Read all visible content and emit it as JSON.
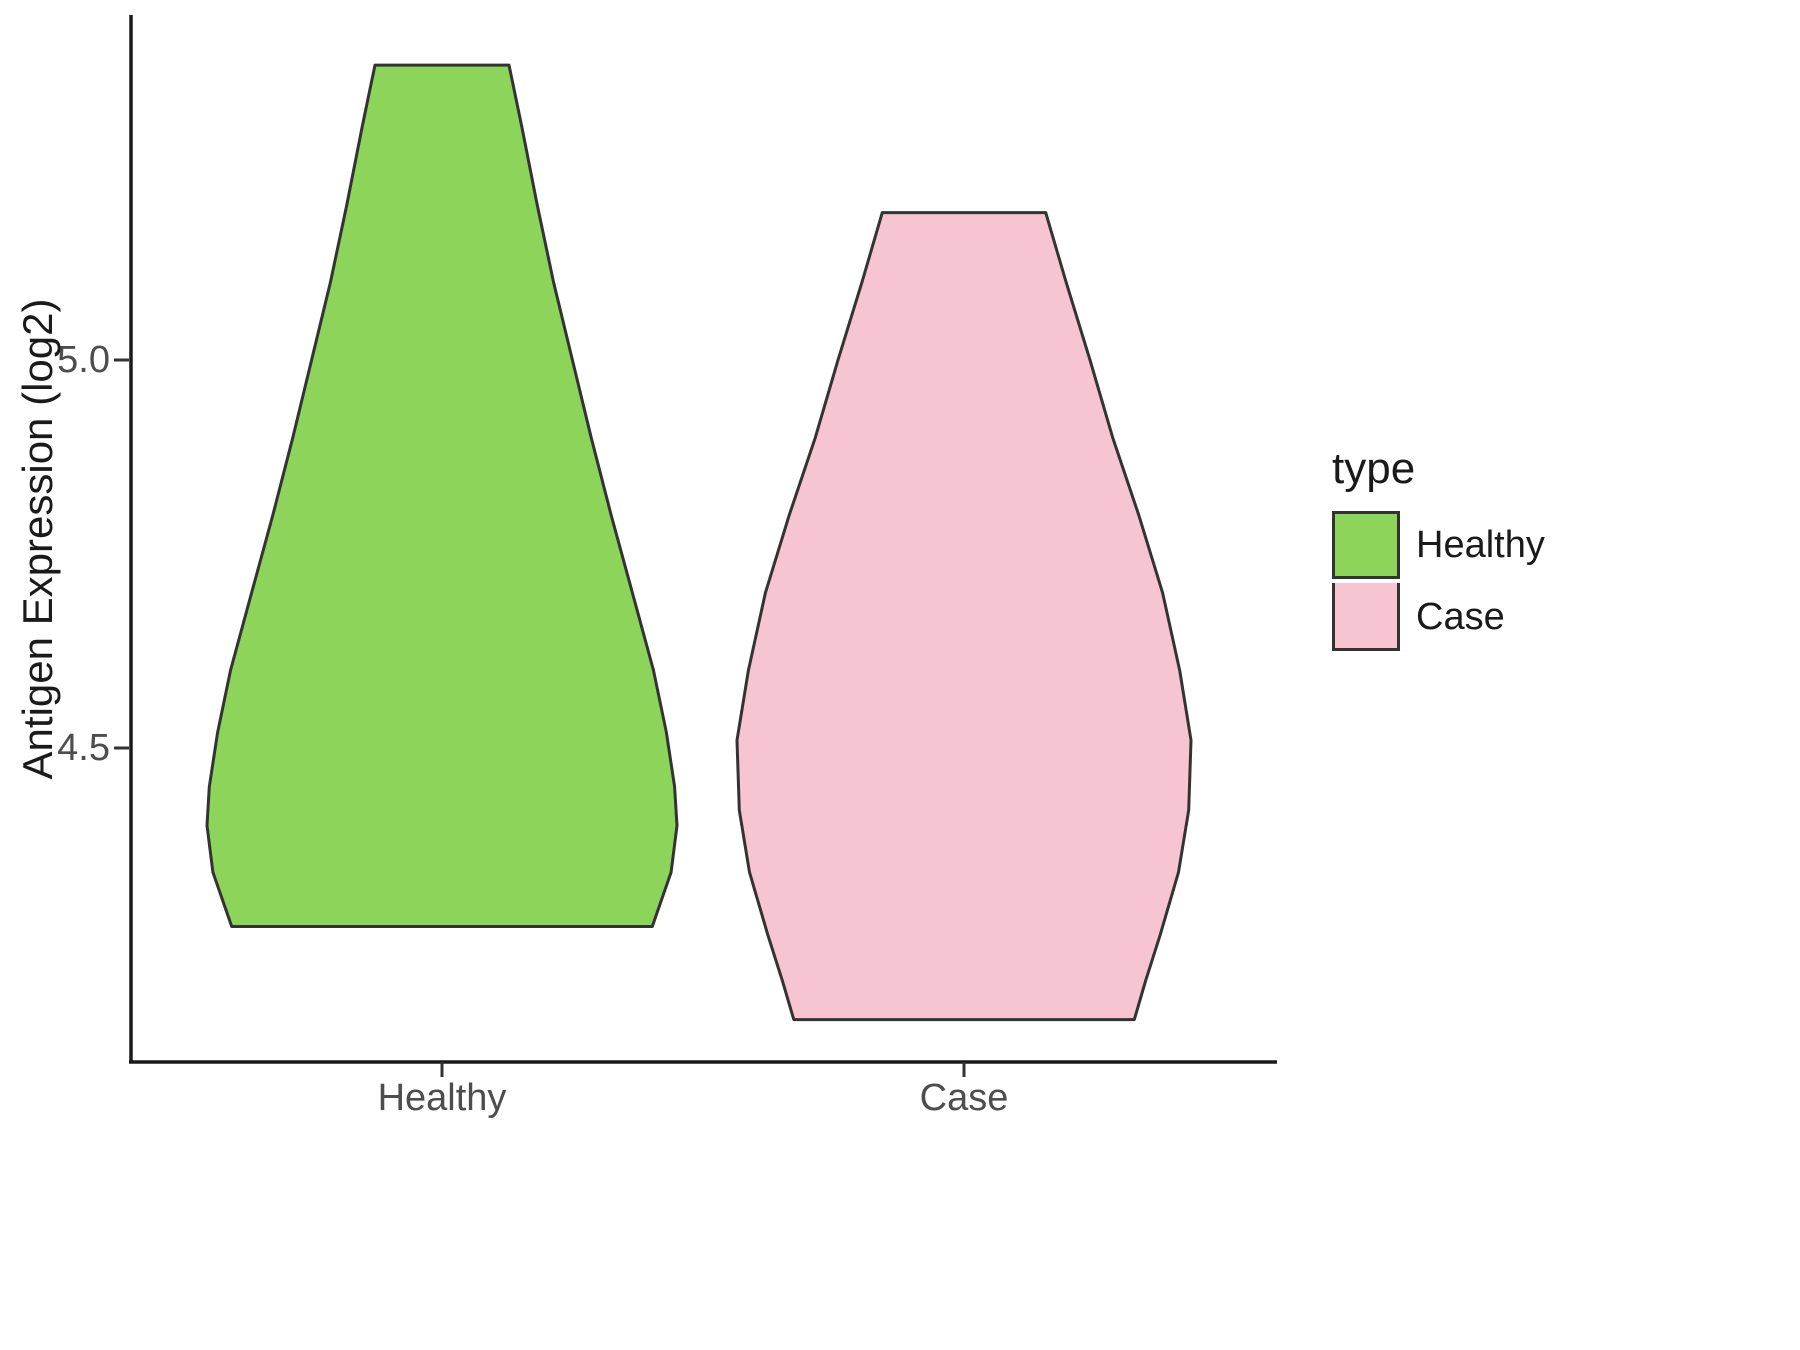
{
  "figure": {
    "y_axis_title": "Antigen Expression (log2)",
    "y_ticks": [
      "5.0",
      "4.5"
    ],
    "x_ticks": [
      "Healthy",
      "Case"
    ],
    "legend": {
      "title": "type",
      "items": [
        {
          "label": "Healthy",
          "color": "#8CD45A"
        },
        {
          "label": "Case",
          "color": "#F7C5D1"
        }
      ]
    }
  },
  "chart_data": {
    "type": "violin",
    "title": "",
    "xlabel": "",
    "ylabel": "Antigen Expression (log2)",
    "categories": [
      "Healthy",
      "Case"
    ],
    "ylim": [
      4.1,
      5.44
    ],
    "y_tick_values": [
      4.5,
      5.0
    ],
    "grid": false,
    "legend_position": "right",
    "legend_title": "type",
    "series": [
      {
        "name": "Healthy",
        "color": "#8CD45A",
        "outline": "#333333",
        "value_range": [
          4.27,
          5.38
        ],
        "widest_at": 4.4,
        "profile": [
          [
            5.38,
            0.285
          ],
          [
            5.3,
            0.34
          ],
          [
            5.2,
            0.405
          ],
          [
            5.1,
            0.475
          ],
          [
            5.0,
            0.555
          ],
          [
            4.9,
            0.635
          ],
          [
            4.8,
            0.72
          ],
          [
            4.7,
            0.81
          ],
          [
            4.6,
            0.9
          ],
          [
            4.52,
            0.955
          ],
          [
            4.45,
            0.99
          ],
          [
            4.4,
            1.0
          ],
          [
            4.34,
            0.975
          ],
          [
            4.27,
            0.895
          ]
        ]
      },
      {
        "name": "Case",
        "color": "#F7C5D1",
        "outline": "#333333",
        "value_range": [
          4.15,
          5.19
        ],
        "widest_at": 4.51,
        "profile": [
          [
            5.19,
            0.36
          ],
          [
            5.1,
            0.45
          ],
          [
            5.0,
            0.555
          ],
          [
            4.9,
            0.655
          ],
          [
            4.8,
            0.77
          ],
          [
            4.7,
            0.875
          ],
          [
            4.6,
            0.95
          ],
          [
            4.51,
            1.0
          ],
          [
            4.42,
            0.99
          ],
          [
            4.34,
            0.945
          ],
          [
            4.26,
            0.865
          ],
          [
            4.2,
            0.8
          ],
          [
            4.15,
            0.75
          ]
        ]
      }
    ]
  }
}
